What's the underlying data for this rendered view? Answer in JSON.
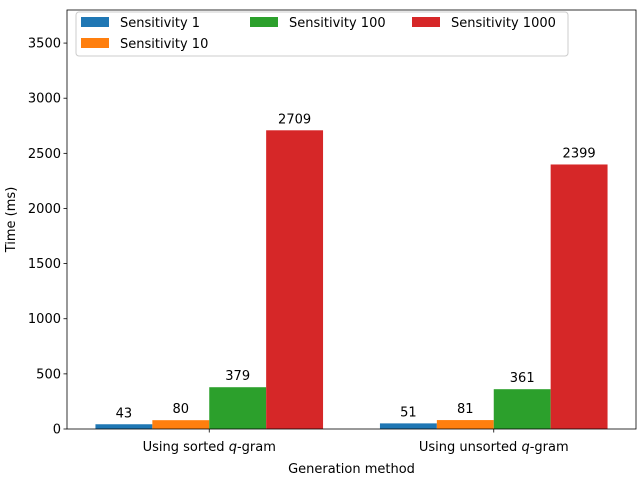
{
  "chart_data": {
    "type": "bar",
    "title": "",
    "xlabel": "Generation method",
    "ylabel": "Time (ms)",
    "categories": [
      {
        "pre": "Using sorted ",
        "italic": "q",
        "post": "-gram"
      },
      {
        "pre": "Using unsorted ",
        "italic": "q",
        "post": "-gram"
      }
    ],
    "series": [
      {
        "name": "Sensitivity 1",
        "color": "#1f77b4",
        "values": [
          43,
          51
        ]
      },
      {
        "name": "Sensitivity 10",
        "color": "#ff7f0e",
        "values": [
          80,
          81
        ]
      },
      {
        "name": "Sensitivity 100",
        "color": "#2ca02c",
        "values": [
          379,
          361
        ]
      },
      {
        "name": "Sensitivity 1000",
        "color": "#d62728",
        "values": [
          2709,
          2399
        ]
      }
    ],
    "yticks": [
      0,
      500,
      1000,
      1500,
      2000,
      2500,
      3000,
      3500
    ],
    "ylim": [
      0,
      3800
    ],
    "legend_location": "top-left",
    "grid": false
  }
}
